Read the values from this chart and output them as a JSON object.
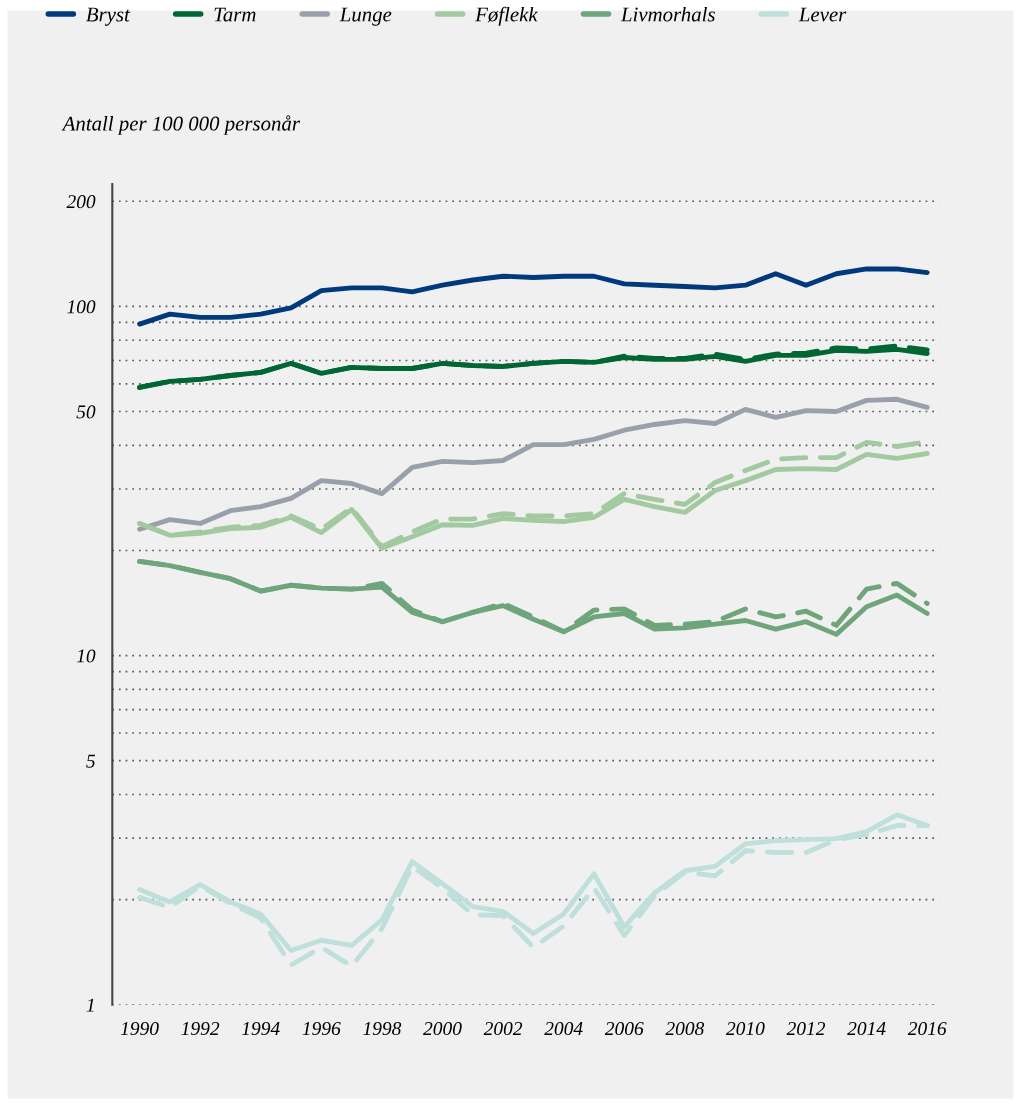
{
  "chart_data": {
    "type": "line",
    "ylabel": "Antall per 100 000 personår",
    "x": [
      1990,
      1991,
      1992,
      1993,
      1994,
      1995,
      1996,
      1997,
      1998,
      1999,
      2000,
      2001,
      2002,
      2003,
      2004,
      2005,
      2006,
      2007,
      2008,
      2009,
      2010,
      2011,
      2012,
      2013,
      2014,
      2015,
      2016
    ],
    "series": [
      {
        "name": "Bryst",
        "color": "#003a7d",
        "line_style": "solid",
        "values": [
          89,
          95,
          93,
          93,
          95,
          99,
          111,
          113,
          113,
          110,
          115,
          119,
          122,
          121,
          122,
          122,
          116,
          115,
          114,
          113,
          115,
          124,
          115,
          124,
          128,
          128,
          125
        ]
      },
      {
        "name": "Tarm",
        "color": "#006633",
        "line_style": "solid",
        "values": [
          58.6,
          61,
          61.8,
          63.4,
          64.7,
          68.7,
          64.3,
          66.9,
          66.4,
          66.4,
          68.7,
          67.7,
          67.3,
          68.7,
          69.6,
          69.1,
          71.4,
          70.5,
          70.5,
          71.9,
          69.6,
          72.4,
          72.4,
          74.8,
          74.3,
          75.3,
          73.3
        ]
      },
      {
        "color": "#006633",
        "line_style": "dashed",
        "values": [
          58.6,
          61,
          61.8,
          63.4,
          64.7,
          68.7,
          64.3,
          66.9,
          66.4,
          66.4,
          68.7,
          67.7,
          67.3,
          68.7,
          69.6,
          69.1,
          72,
          71,
          71,
          73,
          70.5,
          73,
          73.5,
          76,
          75.5,
          77,
          75
        ]
      },
      {
        "name": "Lunge",
        "color": "#9aa0ab",
        "line_style": "solid",
        "values": [
          23,
          24.5,
          23.9,
          26,
          26.7,
          28.2,
          31.7,
          31.1,
          29.1,
          34.6,
          36,
          35.7,
          36.2,
          40.2,
          40.2,
          41.6,
          44.2,
          45.9,
          47.1,
          46.2,
          50.7,
          48.1,
          50.3,
          50,
          53.8,
          54.2,
          51.4
        ]
      },
      {
        "name": "Føflekk",
        "color": "#a3c9a0",
        "line_style": "solid",
        "values": [
          23.9,
          22.1,
          22.4,
          23.1,
          23.3,
          24.9,
          22.5,
          26.2,
          20.3,
          21.9,
          23.7,
          23.6,
          24.7,
          24.4,
          24.2,
          24.9,
          28,
          26.7,
          25.7,
          29.7,
          31.7,
          34.1,
          34.3,
          34.1,
          37.7,
          36.7,
          37.9
        ]
      },
      {
        "color": "#a3c9a0",
        "line_style": "dashed",
        "values": [
          23.9,
          22.1,
          22.6,
          23.3,
          23.6,
          25.1,
          23,
          26.5,
          20.5,
          22.6,
          24.6,
          24.6,
          25.5,
          25.1,
          25.1,
          25.5,
          29.1,
          28,
          27.1,
          31.3,
          33.9,
          36.5,
          36.9,
          36.9,
          40.8,
          39.7,
          41
        ]
      },
      {
        "name": "Livmorhals",
        "color": "#6fa57a",
        "line_style": "solid",
        "values": [
          18.6,
          18.1,
          17.3,
          16.6,
          15.3,
          15.9,
          15.6,
          15.5,
          15.7,
          13.3,
          12.5,
          13.3,
          13.9,
          12.7,
          11.7,
          12.9,
          13.2,
          11.9,
          12,
          12.3,
          12.6,
          11.9,
          12.5,
          11.5,
          13.8,
          14.9,
          13.2
        ]
      },
      {
        "color": "#6fa57a",
        "line_style": "dashed",
        "values": [
          18.6,
          18.1,
          17.3,
          16.6,
          15.3,
          15.9,
          15.6,
          15.5,
          16.1,
          13.5,
          12.5,
          13.3,
          14.1,
          12.9,
          11.7,
          13.5,
          13.6,
          12.2,
          12.3,
          12.5,
          13.6,
          12.9,
          13.4,
          12.2,
          15.5,
          16.1,
          14.1
        ]
      },
      {
        "name": "Lever",
        "color": "#bfe0da",
        "line_style": "solid",
        "values": [
          2.14,
          1.97,
          2.21,
          1.97,
          1.82,
          1.43,
          1.53,
          1.48,
          1.75,
          2.57,
          2.22,
          1.91,
          1.85,
          1.6,
          1.82,
          2.37,
          1.67,
          2.09,
          2.42,
          2.49,
          2.89,
          2.95,
          2.97,
          2.99,
          3.13,
          3.5,
          3.26
        ]
      },
      {
        "color": "#bfe0da",
        "line_style": "dashed",
        "values": [
          2.03,
          1.9,
          2.19,
          1.95,
          1.77,
          1.3,
          1.46,
          1.29,
          1.65,
          2.49,
          2.16,
          1.81,
          1.8,
          1.46,
          1.68,
          2.16,
          1.58,
          2.05,
          2.4,
          2.34,
          2.76,
          2.73,
          2.73,
          2.97,
          3.07,
          3.26,
          3.26
        ]
      }
    ],
    "log": "y",
    "ylim": [
      1,
      224
    ],
    "yticks": [
      1,
      {
        "value": 2,
        "label": null
      },
      {
        "value": 3,
        "label": null
      },
      {
        "value": 4,
        "label": null
      },
      5,
      {
        "value": 6,
        "label": null
      },
      {
        "value": 7,
        "label": null
      },
      {
        "value": 8,
        "label": null
      },
      {
        "value": 9,
        "label": null
      },
      10,
      {
        "value": 20,
        "label": null
      },
      {
        "value": 30,
        "label": null
      },
      {
        "value": 40,
        "label": null
      },
      50,
      {
        "value": 60,
        "label": null
      },
      {
        "value": 70,
        "label": null
      },
      {
        "value": 80,
        "label": null
      },
      {
        "value": 90,
        "label": null
      },
      100,
      200
    ],
    "xlim": [
      1989.1,
      2016.4
    ],
    "xticks": [
      1990,
      1992,
      1994,
      1996,
      1998,
      2000,
      2002,
      2004,
      2006,
      2008,
      2010,
      2012,
      2014,
      2016
    ],
    "grid": "y",
    "legend": "top"
  }
}
